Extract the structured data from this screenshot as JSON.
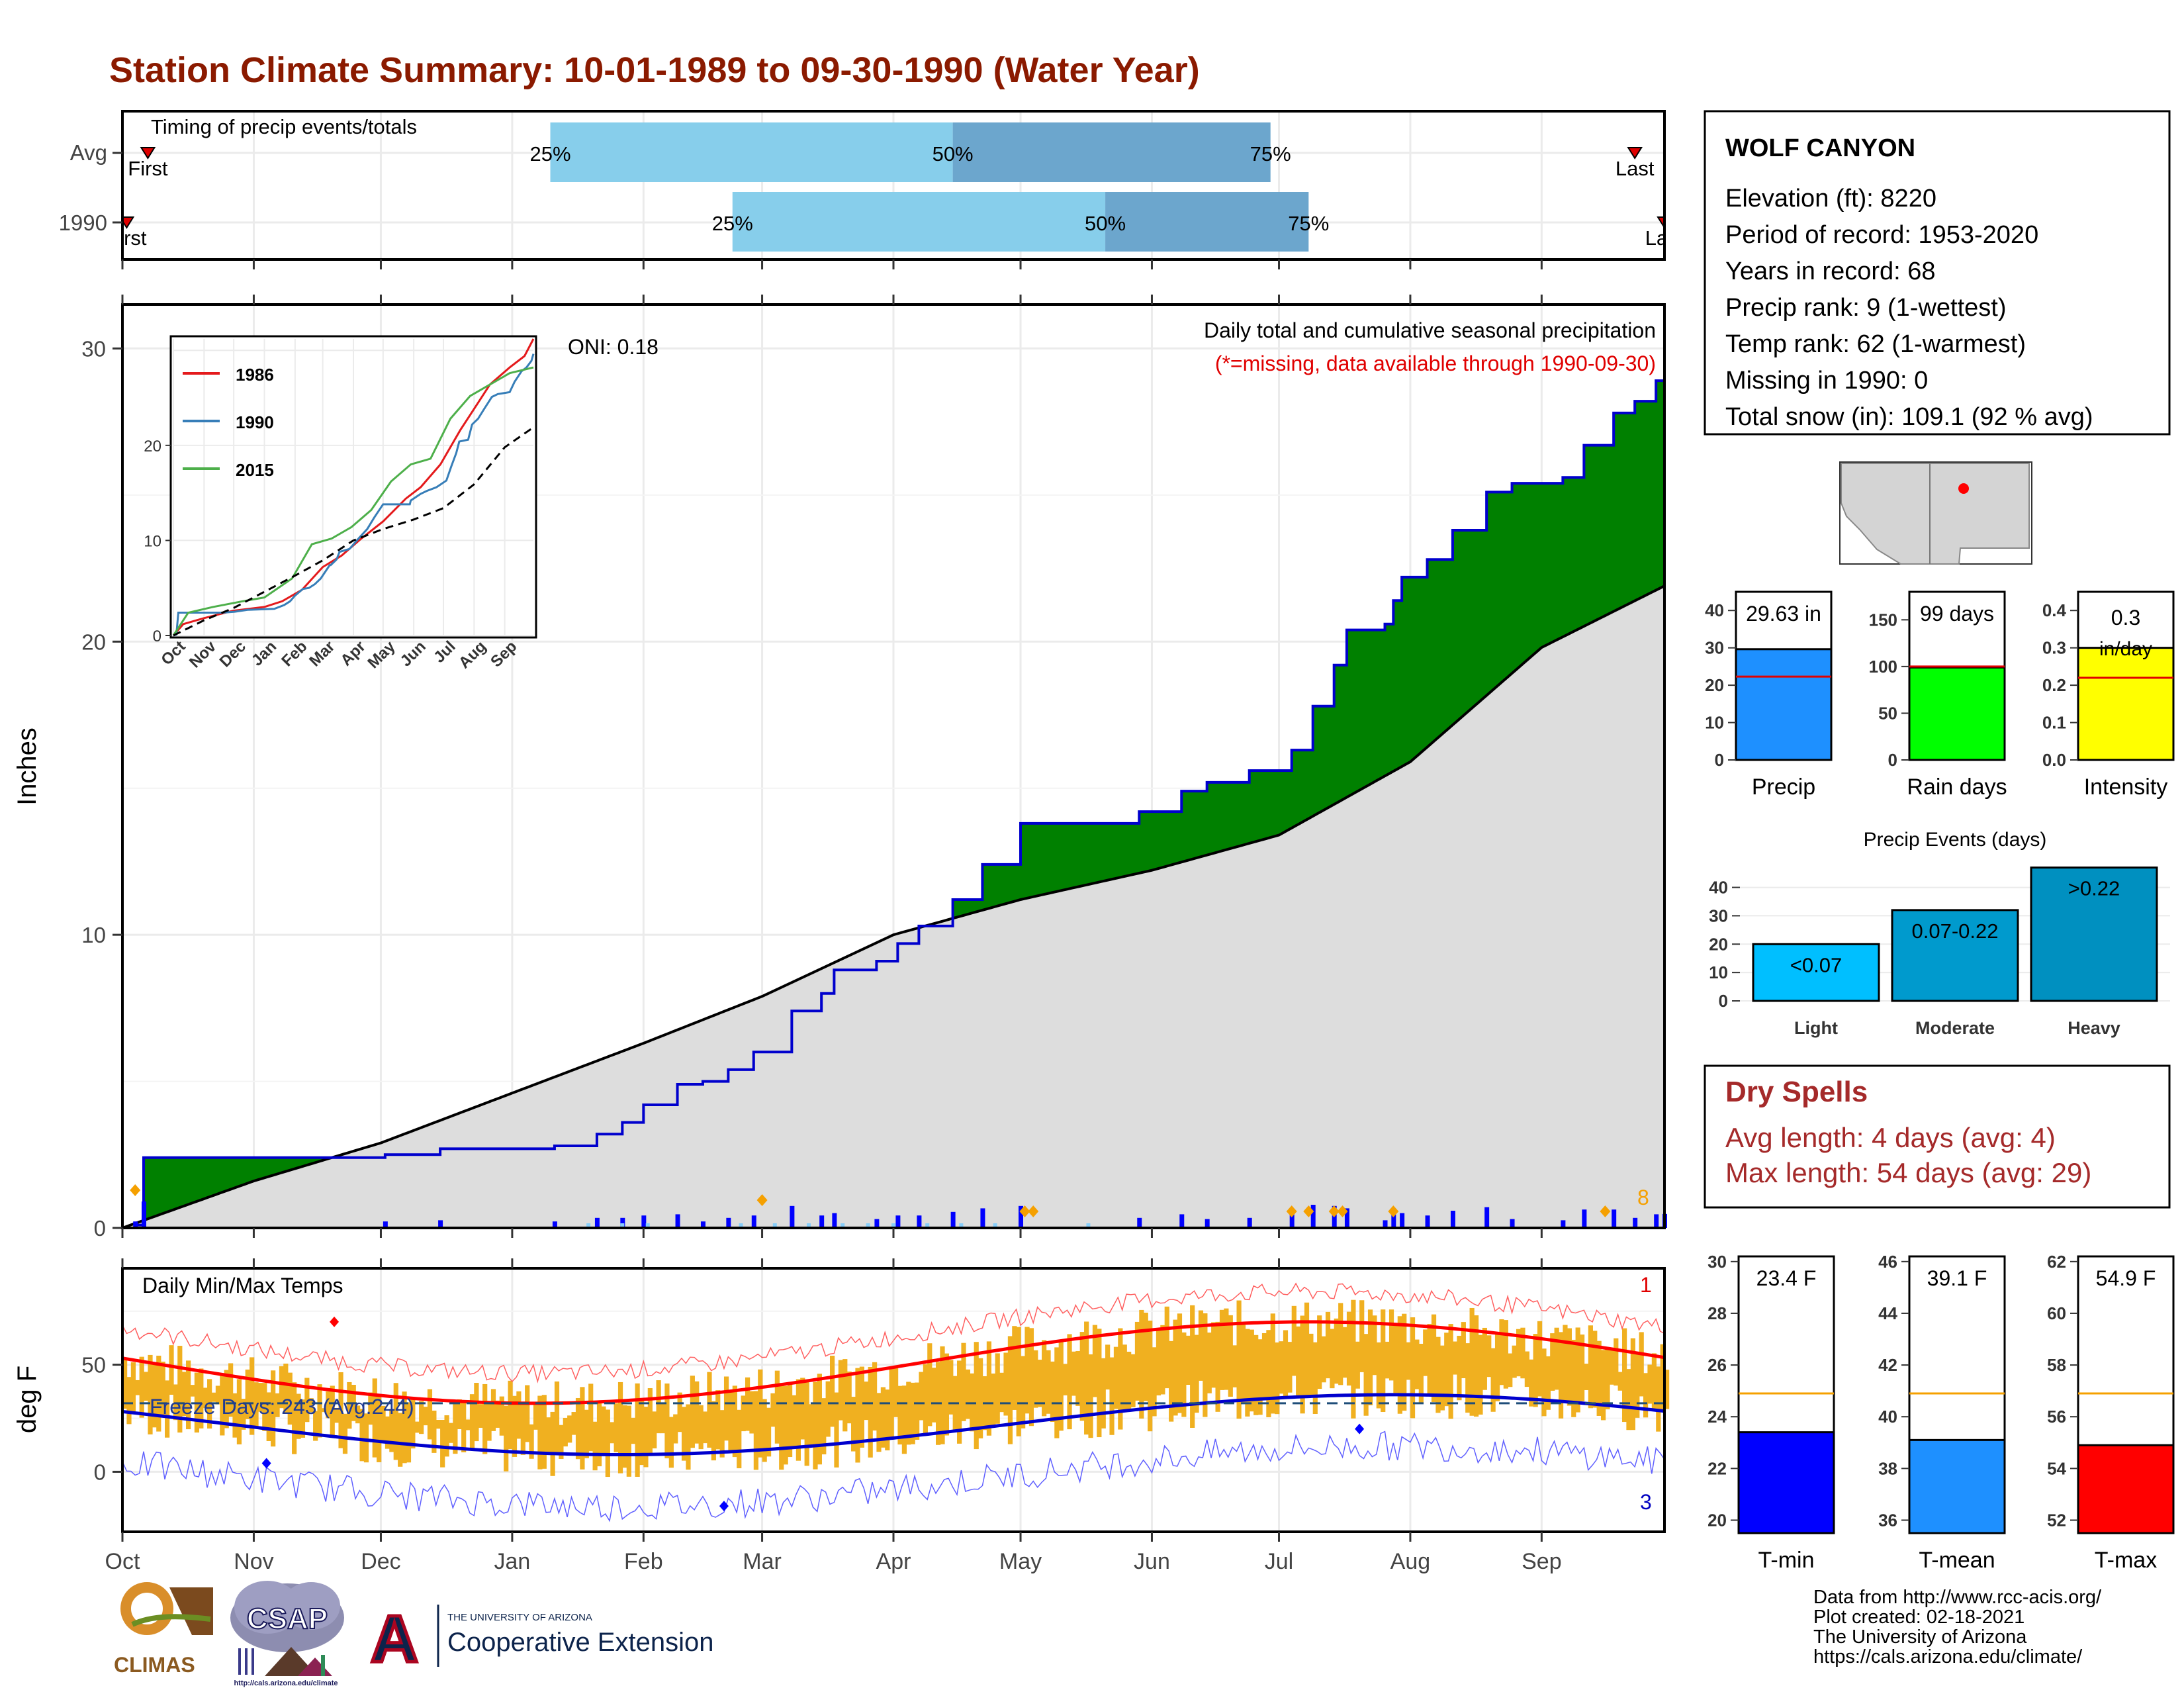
{
  "title": "Station Climate Summary: 10-01-1989 to 09-30-1990 (Water Year)",
  "colors": {
    "title": "#8B1A00",
    "light_blue": "#87CEEB",
    "mid_blue": "#6CA6CD",
    "green": "#008000",
    "brown": "#8B5A00",
    "grey_fill": "#DDDDDD",
    "bar_blue": "#0000FF",
    "temp_bar": "#F0B020",
    "red_line": "#FF0000",
    "blue_line": "#0000CD",
    "dry_spell": "#A52A2A"
  },
  "timing": {
    "label": "Timing of precip events/totals",
    "rows": [
      {
        "name": "Avg",
        "first_label": "First",
        "last_label": "Last",
        "first_day": 6,
        "last_day": 357,
        "p25": 101,
        "p50": 196,
        "p75": 271
      },
      {
        "name": "1990",
        "first_label": "First",
        "last_label": "Last",
        "first_day": 1,
        "last_day": 364,
        "p25": 144,
        "p50": 232,
        "p75": 280
      }
    ],
    "pct_labels": [
      "25%",
      "50%",
      "75%"
    ]
  },
  "main": {
    "ylabel": "Inches",
    "oni": "ONI: 0.18",
    "note1": "Daily total and cumulative seasonal precipitation",
    "note2": "(*=missing, data available through 1990-09-30)",
    "y_ticks": [
      "0",
      "10",
      "20",
      "30"
    ],
    "ylim": [
      0,
      31.5
    ],
    "corner_count": "8"
  },
  "inset": {
    "y_ticks": [
      "0",
      "10",
      "20"
    ],
    "months": [
      "Oct",
      "Nov",
      "Dec",
      "Jan",
      "Feb",
      "Mar",
      "Apr",
      "May",
      "Jun",
      "Jul",
      "Aug",
      "Sep"
    ],
    "legend": [
      {
        "name": "1986",
        "color": "#E41A1C"
      },
      {
        "name": "1990",
        "color": "#377EB8"
      },
      {
        "name": "2015",
        "color": "#4DAF4A"
      }
    ]
  },
  "temps": {
    "label": "Daily Min/Max Temps",
    "ylabel": "deg F",
    "freeze": "Freeze Days: 243 (Avg:244)",
    "y_ticks": [
      "0",
      "50"
    ],
    "ylim": [
      -28,
      95
    ],
    "max_count": "1",
    "min_count": "3"
  },
  "months": [
    "Oct",
    "Nov",
    "Dec",
    "Jan",
    "Feb",
    "Mar",
    "Apr",
    "May",
    "Jun",
    "Jul",
    "Aug",
    "Sep"
  ],
  "station": {
    "name": "WOLF CANYON",
    "lines": [
      "Elevation (ft): 8220",
      "Period of record: 1953-2020",
      "Years in record: 68",
      "Precip rank: 9 (1-wettest)",
      "Temp rank: 62 (1-warmest)",
      "Missing in 1990: 0",
      "Total snow (in): 109.1 (92 % avg)"
    ]
  },
  "chart_data": [
    {
      "type": "bar",
      "title": "Precip",
      "values": [
        29.63
      ],
      "avg": 22.3,
      "label": "29.63 in",
      "ylim": [
        0,
        45
      ],
      "y_ticks": [
        "0",
        "10",
        "20",
        "30",
        "40"
      ],
      "color": "#1E90FF"
    },
    {
      "type": "bar",
      "title": "Rain days",
      "values": [
        99
      ],
      "avg": 100,
      "label": "99 days",
      "ylim": [
        0,
        180
      ],
      "y_ticks": [
        "0",
        "50",
        "100",
        "150"
      ],
      "color": "#00FF00"
    },
    {
      "type": "bar",
      "title": "Intensity",
      "values": [
        0.3
      ],
      "avg": 0.22,
      "label": "0.3",
      "label2": "in/day",
      "ylim": [
        0,
        0.45
      ],
      "y_ticks": [
        "0.0",
        "0.1",
        "0.2",
        "0.3",
        "0.4"
      ],
      "color": "#FFFF00"
    },
    {
      "type": "bar",
      "title": "Precip Events (days)",
      "categories": [
        "Light",
        "Moderate",
        "Heavy"
      ],
      "labels": [
        "<0.07",
        "0.07-0.22",
        ">0.22"
      ],
      "values": [
        20,
        32,
        47
      ],
      "ylim": [
        0,
        49
      ],
      "y_ticks": [
        "0",
        "10",
        "20",
        "30",
        "40"
      ],
      "colors": [
        "#00BFFF",
        "#009ACD",
        "#0090C0"
      ]
    },
    {
      "type": "bar",
      "title": "T-min",
      "values": [
        23.4
      ],
      "avg": 24.9,
      "label": "23.4 F",
      "ylim": [
        19.5,
        30.2
      ],
      "y_ticks": [
        "20",
        "22",
        "24",
        "26",
        "28",
        "30"
      ],
      "color": "#0000FF"
    },
    {
      "type": "bar",
      "title": "T-mean",
      "values": [
        39.1
      ],
      "avg": 40.9,
      "label": "39.1 F",
      "ylim": [
        35.5,
        46.2
      ],
      "y_ticks": [
        "36",
        "38",
        "40",
        "42",
        "44",
        "46"
      ],
      "color": "#1E90FF"
    },
    {
      "type": "bar",
      "title": "T-max",
      "values": [
        54.9
      ],
      "avg": 56.9,
      "label": "54.9 F",
      "ylim": [
        51.5,
        62.2
      ],
      "y_ticks": [
        "52",
        "54",
        "56",
        "58",
        "60",
        "62"
      ],
      "color": "#FF0000"
    }
  ],
  "dry": {
    "title": "Dry Spells",
    "avg": "Avg length: 4 days (avg: 4)",
    "max": "Max length: 54 days (avg: 29)"
  },
  "logos": {
    "climas": "CLIMAS",
    "csap": "CSAP",
    "csap_url": "http://cals.arizona.edu/climate",
    "ua_top": "THE UNIVERSITY OF ARIZONA",
    "ua_bottom": "Cooperative Extension",
    "ua_letter": "A"
  },
  "credits": [
    "Data from http://www.rcc-acis.org/",
    "Plot created: 02-18-2021",
    "The University of Arizona",
    "https://cals.arizona.edu/climate/"
  ]
}
